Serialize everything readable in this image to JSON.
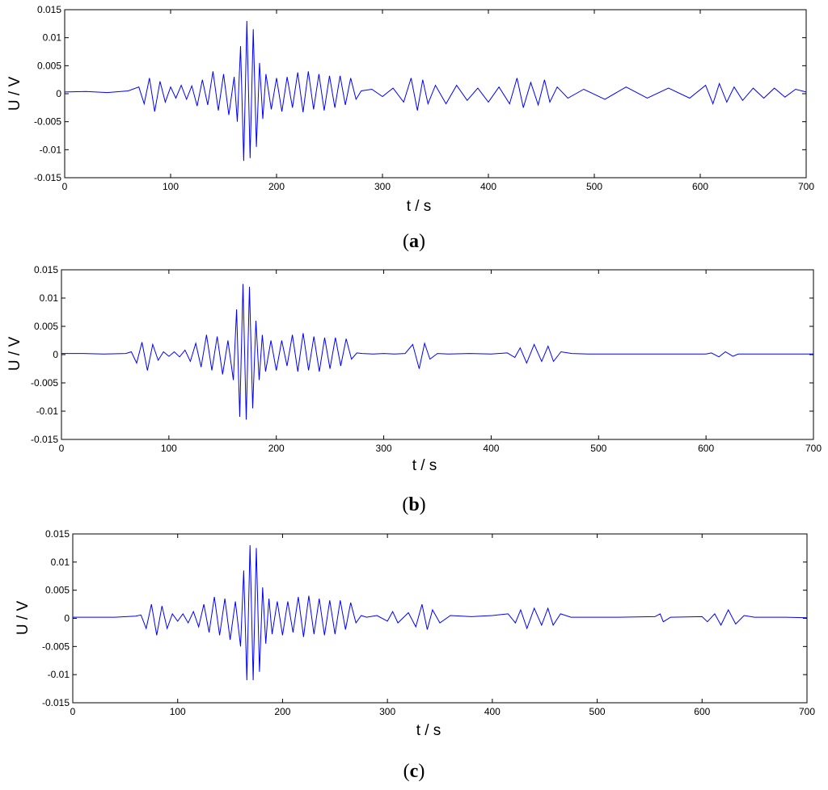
{
  "chart_data": [
    {
      "type": "line",
      "caption": "a",
      "xlabel": "t / s",
      "ylabel": "U / V",
      "xlim": [
        0,
        700
      ],
      "ylim": [
        -0.015,
        0.015
      ],
      "xticks": [
        "0",
        "100",
        "200",
        "300",
        "400",
        "500",
        "600",
        "700"
      ],
      "yticks": [
        "0.015",
        "0.01",
        "0.005",
        "0",
        "-0.005",
        "-0.01",
        "-0.015"
      ],
      "grid": false,
      "color": "#0000ff",
      "series": [
        {
          "x": [
            0,
            20,
            40,
            60,
            70,
            75,
            80,
            85,
            90,
            95,
            100,
            105,
            110,
            115,
            120,
            125,
            130,
            135,
            140,
            145,
            150,
            155,
            160,
            163,
            166,
            169,
            172,
            175,
            178,
            181,
            184,
            187,
            190,
            195,
            200,
            205,
            210,
            215,
            220,
            225,
            230,
            235,
            240,
            245,
            250,
            255,
            260,
            265,
            270,
            275,
            280,
            290,
            300,
            310,
            320,
            327,
            333,
            338,
            343,
            350,
            360,
            370,
            380,
            390,
            400,
            410,
            420,
            427,
            433,
            440,
            447,
            453,
            458,
            465,
            475,
            490,
            510,
            530,
            550,
            570,
            590,
            605,
            612,
            618,
            625,
            632,
            640,
            650,
            660,
            670,
            680,
            690,
            700
          ],
          "y": [
            0.0003,
            0.0004,
            0.0002,
            0.0005,
            0.0012,
            -0.0018,
            0.0028,
            -0.0032,
            0.0022,
            -0.0015,
            0.0012,
            -0.0008,
            0.0015,
            -0.001,
            0.0014,
            -0.0022,
            0.0025,
            -0.002,
            0.004,
            -0.003,
            0.0035,
            -0.0038,
            0.003,
            -0.005,
            0.0085,
            -0.012,
            0.013,
            -0.0115,
            0.0115,
            -0.0095,
            0.0055,
            -0.0045,
            0.0035,
            -0.0028,
            0.0028,
            -0.0032,
            0.003,
            -0.0025,
            0.0038,
            -0.0033,
            0.004,
            -0.0028,
            0.0035,
            -0.003,
            0.0032,
            -0.0025,
            0.0032,
            -0.002,
            0.0028,
            -0.001,
            0.0005,
            0.0008,
            -0.0005,
            0.001,
            -0.0015,
            0.0028,
            -0.003,
            0.0025,
            -0.0018,
            0.0015,
            -0.0018,
            0.0015,
            -0.0012,
            0.001,
            -0.0015,
            0.0012,
            -0.0018,
            0.0028,
            -0.0025,
            0.002,
            -0.002,
            0.0025,
            -0.0015,
            0.0012,
            -0.0008,
            0.0008,
            -0.001,
            0.0012,
            -0.0008,
            0.001,
            -0.0008,
            0.0015,
            -0.0018,
            0.0018,
            -0.0015,
            0.0012,
            -0.0012,
            0.001,
            -0.0008,
            0.001,
            -0.0006,
            0.0008,
            0.0003
          ]
        }
      ]
    },
    {
      "type": "line",
      "caption": "b",
      "xlabel": "t / s",
      "ylabel": "U / V",
      "xlim": [
        0,
        700
      ],
      "ylim": [
        -0.015,
        0.015
      ],
      "xticks": [
        "0",
        "100",
        "200",
        "300",
        "400",
        "500",
        "600",
        "700"
      ],
      "yticks": [
        "0.015",
        "0.01",
        "0.005",
        "0",
        "-0.005",
        "-0.01",
        "-0.015"
      ],
      "grid": false,
      "color": "#0000ff",
      "series": [
        {
          "x": [
            0,
            20,
            40,
            60,
            65,
            70,
            75,
            80,
            85,
            90,
            95,
            100,
            105,
            110,
            115,
            120,
            125,
            130,
            135,
            140,
            145,
            150,
            155,
            160,
            163,
            166,
            169,
            172,
            175,
            178,
            181,
            184,
            187,
            190,
            195,
            200,
            205,
            210,
            215,
            220,
            225,
            230,
            235,
            240,
            245,
            250,
            255,
            260,
            265,
            270,
            275,
            280,
            290,
            300,
            310,
            320,
            327,
            333,
            338,
            343,
            350,
            360,
            380,
            400,
            415,
            422,
            427,
            433,
            440,
            447,
            453,
            458,
            465,
            475,
            490,
            520,
            560,
            600,
            605,
            612,
            618,
            625,
            630,
            650,
            680,
            700
          ],
          "y": [
            0.0002,
            0.0002,
            0.0001,
            0.0002,
            0.0005,
            -0.0015,
            0.0022,
            -0.0028,
            0.0018,
            -0.001,
            0.0005,
            -0.0003,
            0.0005,
            -0.0004,
            0.0008,
            -0.0012,
            0.002,
            -0.0022,
            0.0035,
            -0.0028,
            0.0032,
            -0.0035,
            0.0025,
            -0.0045,
            0.008,
            -0.011,
            0.0125,
            -0.0115,
            0.012,
            -0.0095,
            0.006,
            -0.0045,
            0.0035,
            -0.003,
            0.0025,
            -0.0028,
            0.0025,
            -0.002,
            0.0035,
            -0.003,
            0.0038,
            -0.0028,
            0.0032,
            -0.003,
            0.003,
            -0.0025,
            0.003,
            -0.002,
            0.0028,
            -0.0008,
            0.0003,
            0.0002,
            0.0001,
            0.0002,
            0.0001,
            0.0002,
            0.0018,
            -0.0025,
            0.002,
            -0.0008,
            0.0002,
            0.0001,
            0.0002,
            0.0001,
            0.0003,
            -0.0005,
            0.0012,
            -0.0015,
            0.0018,
            -0.0012,
            0.0015,
            -0.0012,
            0.0005,
            0.0002,
            0.0001,
            0.0001,
            0.0001,
            0.0001,
            0.0003,
            -0.0004,
            0.0005,
            -0.0003,
            0.0001,
            0.0001,
            0.0001,
            0.0001
          ]
        }
      ]
    },
    {
      "type": "line",
      "caption": "c",
      "xlabel": "t / s",
      "ylabel": "U / V",
      "xlim": [
        0,
        700
      ],
      "ylim": [
        -0.015,
        0.015
      ],
      "xticks": [
        "0",
        "100",
        "200",
        "300",
        "400",
        "500",
        "600",
        "700"
      ],
      "yticks": [
        "0.015",
        "0.01",
        "0.005",
        "0",
        "-0.005",
        "-0.01",
        "-0.015"
      ],
      "grid": false,
      "color": "#0000ff",
      "series": [
        {
          "x": [
            0,
            20,
            40,
            60,
            65,
            70,
            75,
            80,
            85,
            90,
            95,
            100,
            105,
            110,
            115,
            120,
            125,
            130,
            135,
            140,
            145,
            150,
            155,
            160,
            163,
            166,
            169,
            172,
            175,
            178,
            181,
            184,
            187,
            190,
            195,
            200,
            205,
            210,
            215,
            220,
            225,
            230,
            235,
            240,
            245,
            250,
            255,
            260,
            265,
            270,
            275,
            280,
            290,
            300,
            305,
            310,
            320,
            327,
            333,
            338,
            343,
            350,
            360,
            380,
            400,
            415,
            422,
            427,
            433,
            440,
            447,
            453,
            458,
            465,
            475,
            490,
            520,
            555,
            560,
            563,
            570,
            600,
            605,
            612,
            618,
            625,
            632,
            640,
            650,
            680,
            700
          ],
          "y": [
            0.0002,
            0.0002,
            0.0002,
            0.0004,
            0.0006,
            -0.0018,
            0.0025,
            -0.003,
            0.0022,
            -0.0018,
            0.0008,
            -0.0005,
            0.0008,
            -0.0008,
            0.0012,
            -0.0015,
            0.0025,
            -0.0025,
            0.0038,
            -0.003,
            0.0035,
            -0.0038,
            0.003,
            -0.005,
            0.0085,
            -0.011,
            0.013,
            -0.011,
            0.0125,
            -0.0095,
            0.0055,
            -0.0045,
            0.0035,
            -0.0028,
            0.003,
            -0.003,
            0.003,
            -0.0025,
            0.0038,
            -0.0033,
            0.004,
            -0.0028,
            0.0035,
            -0.003,
            0.0032,
            -0.0028,
            0.0032,
            -0.002,
            0.0028,
            -0.0008,
            0.0005,
            0.0002,
            0.0005,
            -0.0005,
            0.0012,
            -0.0008,
            0.001,
            -0.0015,
            0.0025,
            -0.002,
            0.0015,
            -0.0008,
            0.0005,
            0.0003,
            0.0005,
            0.0008,
            -0.0008,
            0.0015,
            -0.0018,
            0.0018,
            -0.0012,
            0.0018,
            -0.0012,
            0.0008,
            0.0002,
            0.0002,
            0.0002,
            0.0003,
            0.0008,
            -0.0006,
            0.0002,
            0.0003,
            -0.0006,
            0.0008,
            -0.0012,
            0.0015,
            -0.001,
            0.0005,
            0.0002,
            0.0002,
            0.0001
          ]
        }
      ]
    }
  ]
}
